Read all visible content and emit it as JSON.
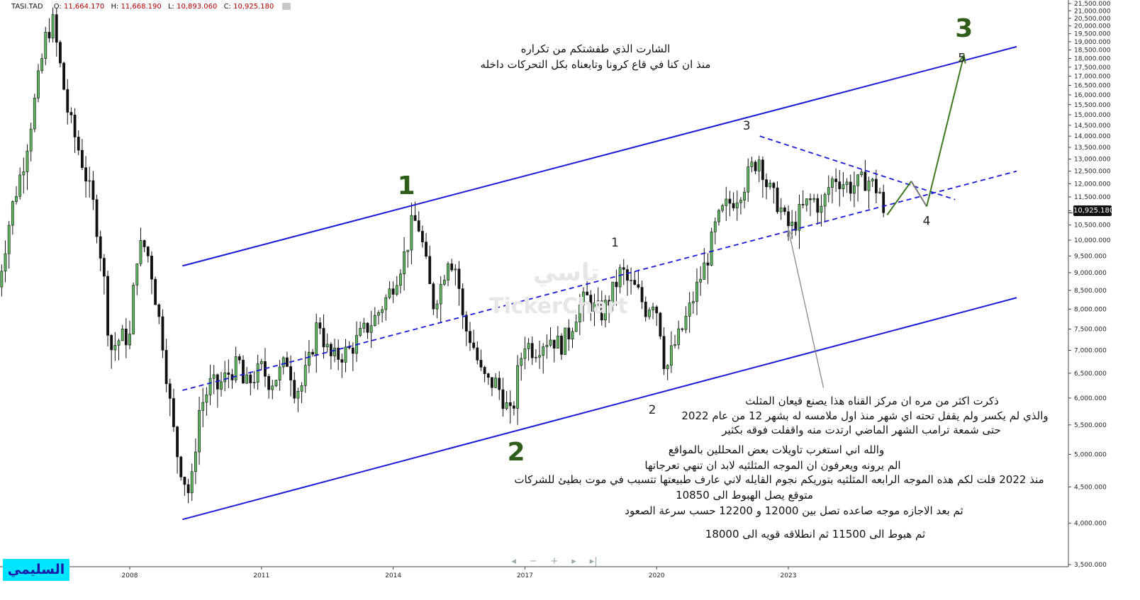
{
  "header": {
    "symbol": "TASI.TAD",
    "o_label": "O:",
    "o_value": "11,664.170",
    "h_label": "H:",
    "h_value": "11,668.190",
    "l_label": "L:",
    "l_value": "10,893.060",
    "c_label": "C:",
    "c_value": "10,925.180"
  },
  "last_price_tag": "10,925.180",
  "watermark": {
    "arabic": "تاسي",
    "brand": "TickerChart"
  },
  "signature": "السليمي",
  "navigation": {
    "left": "◂",
    "minus": "−",
    "plus": "+",
    "right": "▸",
    "end": "▸|"
  },
  "notes": {
    "top_line1": "الشارت الذي طفشتكم من تكراره",
    "top_line2": "منذ ان كنا في قاع كرونا وتابعناه بكل التحركات داخله",
    "b1": "ذكرت اكثر من مره ان مركز القناه هذا يصنع قيعان المثلث",
    "b2": "والذي لم يكسر ولم يقفل تحته اي شهر منذ اول ملامسه له بشهر 12 من عام 2022",
    "b3": "حتى شمعة ترامب الشهر الماضي ارتدت منه واقفلت فوقه بكثير",
    "b4": "والله اني استغرب تاويلات بعض المحللين بالمواقع",
    "b5": "الم يرونه ويعرفون ان الموجه المثلثيه لابد ان تنهي تعرجاتها",
    "b6": "منذ 2022 قلت لكم هذه الموجه الرابعه المثلثيه بتوريكم نجوم القايله لاني عارف طبيعتها تتسبب في موت بطيئ للشركات",
    "b7": "متوقع يصل الهبوط الى 10850",
    "b8": "ثم بعد الاجازه موجه صاعده تصل بين 12000 و 12200 حسب سرعة الصعود",
    "b9": "ثم هبوط الى 11500 ثم انطلاقه قويه الى 18000"
  },
  "chart_data": {
    "type": "candlestick",
    "symbol": "TASI.TAD",
    "interval": "monthly",
    "y_scale": "log",
    "ylim": [
      3500,
      21500
    ],
    "y_ticks": [
      3500,
      4000,
      4500,
      5000,
      5500,
      6000,
      6500,
      7000,
      7500,
      8000,
      8500,
      9000,
      9500,
      10000,
      10500,
      11000,
      11500,
      12000,
      12500,
      13000,
      13500,
      14000,
      14500,
      15000,
      15500,
      16000,
      16500,
      17000,
      17500,
      18000,
      18500,
      19000,
      19500,
      20000,
      20500,
      21000,
      21500
    ],
    "x_labels": [
      "2008",
      "2011",
      "2014",
      "2017",
      "2020",
      "2023"
    ],
    "x_label_years": [
      2008,
      2011,
      2014,
      2017,
      2020,
      2023
    ],
    "xlim_years": [
      2005.0,
      2028.2
    ],
    "grid": false,
    "legend": "none",
    "colors": {
      "up": "#5cb85c",
      "down": "#111111",
      "channel": "#1a1ad6",
      "triangle": "#1a1ad6",
      "projection": "#3d7a1f",
      "projection_back": "#777777",
      "arrow": "#888888",
      "wave_label_major": "#2f5e1a",
      "wave_label_minor": "#222222",
      "last_price": "#111111"
    },
    "price_path": [
      [
        2005.0,
        8600
      ],
      [
        2005.3,
        11000
      ],
      [
        2005.6,
        13000
      ],
      [
        2005.9,
        16500
      ],
      [
        2006.1,
        19500
      ],
      [
        2006.25,
        20200
      ],
      [
        2006.4,
        17800
      ],
      [
        2006.6,
        15000
      ],
      [
        2006.9,
        13000
      ],
      [
        2007.2,
        11000
      ],
      [
        2007.4,
        9000
      ],
      [
        2007.55,
        7000
      ],
      [
        2007.8,
        7300
      ],
      [
        2008.0,
        7300
      ],
      [
        2008.15,
        9500
      ],
      [
        2008.3,
        9900
      ],
      [
        2008.45,
        9400
      ],
      [
        2008.6,
        8200
      ],
      [
        2008.75,
        7200
      ],
      [
        2008.9,
        6000
      ],
      [
        2009.05,
        5100
      ],
      [
        2009.2,
        4700
      ],
      [
        2009.35,
        4400
      ],
      [
        2009.45,
        4700
      ],
      [
        2009.55,
        5700
      ],
      [
        2009.7,
        6000
      ],
      [
        2009.85,
        6300
      ],
      [
        2010.0,
        6200
      ],
      [
        2010.25,
        6500
      ],
      [
        2010.5,
        6700
      ],
      [
        2010.6,
        6200
      ],
      [
        2010.8,
        6400
      ],
      [
        2011.0,
        6600
      ],
      [
        2011.2,
        6300
      ],
      [
        2011.4,
        6500
      ],
      [
        2011.6,
        6800
      ],
      [
        2011.75,
        6200
      ],
      [
        2011.9,
        6200
      ],
      [
        2012.1,
        6800
      ],
      [
        2012.3,
        7800
      ],
      [
        2012.45,
        7100
      ],
      [
        2012.6,
        6800
      ],
      [
        2012.8,
        6900
      ],
      [
        2013.0,
        7000
      ],
      [
        2013.3,
        7400
      ],
      [
        2013.6,
        7800
      ],
      [
        2013.9,
        8400
      ],
      [
        2014.1,
        9000
      ],
      [
        2014.3,
        9700
      ],
      [
        2014.45,
        10700
      ],
      [
        2014.6,
        10400
      ],
      [
        2014.75,
        9200
      ],
      [
        2014.9,
        8100
      ],
      [
        2015.1,
        8700
      ],
      [
        2015.25,
        9500
      ],
      [
        2015.45,
        9100
      ],
      [
        2015.6,
        7600
      ],
      [
        2015.8,
        7200
      ],
      [
        2016.0,
        6500
      ],
      [
        2016.15,
        6300
      ],
      [
        2016.35,
        6300
      ],
      [
        2016.5,
        6000
      ],
      [
        2016.7,
        5600
      ],
      [
        2016.85,
        6600
      ],
      [
        2017.0,
        7200
      ],
      [
        2017.2,
        7000
      ],
      [
        2017.4,
        7200
      ],
      [
        2017.6,
        7300
      ],
      [
        2017.8,
        7100
      ],
      [
        2018.0,
        7400
      ],
      [
        2018.2,
        8000
      ],
      [
        2018.4,
        8300
      ],
      [
        2018.6,
        8000
      ],
      [
        2018.75,
        7900
      ],
      [
        2018.9,
        8200
      ],
      [
        2019.05,
        8600
      ],
      [
        2019.2,
        9100
      ],
      [
        2019.35,
        8700
      ],
      [
        2019.55,
        8500
      ],
      [
        2019.75,
        8000
      ],
      [
        2019.95,
        8300
      ],
      [
        2020.1,
        7400
      ],
      [
        2020.2,
        6500
      ],
      [
        2020.35,
        7000
      ],
      [
        2020.55,
        7400
      ],
      [
        2020.75,
        8000
      ],
      [
        2020.95,
        8700
      ],
      [
        2021.15,
        9400
      ],
      [
        2021.35,
        10500
      ],
      [
        2021.55,
        11100
      ],
      [
        2021.8,
        11500
      ],
      [
        2022.0,
        12000
      ],
      [
        2022.15,
        12600
      ],
      [
        2022.35,
        13100
      ],
      [
        2022.5,
        12000
      ],
      [
        2022.65,
        11500
      ],
      [
        2022.8,
        11200
      ],
      [
        2022.95,
        10500
      ],
      [
        2023.1,
        10400
      ],
      [
        2023.25,
        10900
      ],
      [
        2023.45,
        11300
      ],
      [
        2023.6,
        11400
      ],
      [
        2023.75,
        11000
      ],
      [
        2023.9,
        11800
      ],
      [
        2024.05,
        12300
      ],
      [
        2024.2,
        12100
      ],
      [
        2024.4,
        11900
      ],
      [
        2024.6,
        12000
      ],
      [
        2024.8,
        12200
      ],
      [
        2024.95,
        11900
      ],
      [
        2025.1,
        11664
      ],
      [
        2025.2,
        10925
      ]
    ],
    "channel_upper": {
      "from": [
        2009.2,
        9200
      ],
      "to": [
        2028.2,
        18700
      ]
    },
    "channel_lower": {
      "from": [
        2009.2,
        4050
      ],
      "to": [
        2028.2,
        8300
      ]
    },
    "channel_middle": {
      "from": [
        2009.2,
        6150
      ],
      "to": [
        2028.2,
        12500
      ]
    },
    "triangle_upper": {
      "from": [
        2022.35,
        14000
      ],
      "to": [
        2026.8,
        11400
      ]
    },
    "projection": [
      [
        2025.25,
        10850
      ],
      [
        2025.8,
        12100
      ],
      [
        2026.15,
        11150
      ],
      [
        2027.0,
        18200
      ]
    ],
    "projection_back_segment": [
      [
        2025.8,
        12100
      ],
      [
        2026.15,
        11150
      ]
    ],
    "pointer_arrow": {
      "from": [
        2023.8,
        6200
      ],
      "to": [
        2023.0,
        10350
      ]
    },
    "wave_labels": [
      {
        "text": "1",
        "x": 2014.3,
        "y": 11600,
        "major": true
      },
      {
        "text": "2",
        "x": 2016.8,
        "y": 4900,
        "major": true
      },
      {
        "text": "3",
        "x": 2027.0,
        "y": 19300,
        "major": true
      },
      {
        "text": "1",
        "x": 2019.05,
        "y": 9800,
        "major": false
      },
      {
        "text": "2",
        "x": 2019.9,
        "y": 5700,
        "major": false
      },
      {
        "text": "3",
        "x": 2022.05,
        "y": 14300,
        "major": false
      },
      {
        "text": "4",
        "x": 2026.15,
        "y": 10500,
        "major": false
      },
      {
        "text": "5",
        "x": 2026.95,
        "y": 17800,
        "major": false
      }
    ],
    "last_price": 10925.18
  }
}
